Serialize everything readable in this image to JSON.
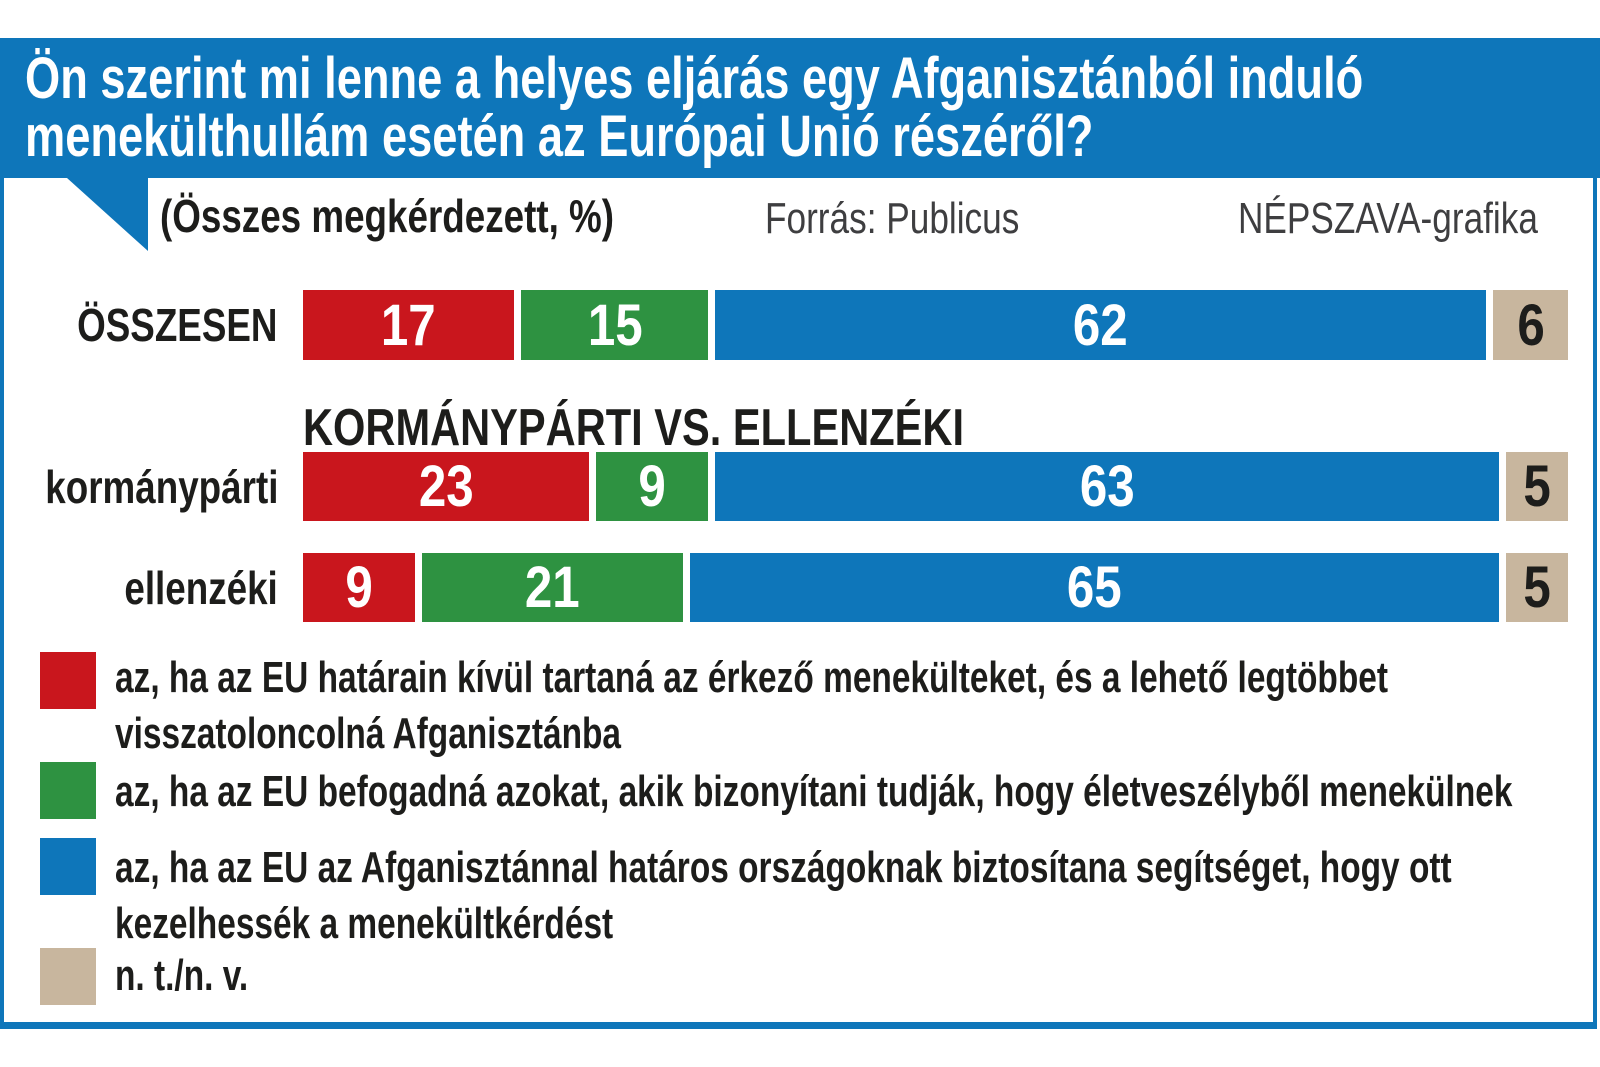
{
  "header": {
    "title_line1": "Ön szerint mi lenne a helyes eljárás egy Afganisztánból induló",
    "title_line2": "menekülthullám esetén az Európai Unió részéről?"
  },
  "meta": {
    "subtitle": "(Összes megkérdezett, %)",
    "source": "Forrás: Publicus",
    "credit": "NÉPSZAVA-grafika"
  },
  "section_header": "KORMÁNYPÁRTI VS. ELLENZÉKI",
  "colors": {
    "blue": "#0e76ba",
    "red": "#c9161d",
    "green": "#2e9241",
    "tan": "#c8b69e"
  },
  "chart_data": {
    "type": "bar",
    "stacked": true,
    "orientation": "horizontal",
    "unit": "%",
    "xlim": [
      0,
      100
    ],
    "categories": [
      "ÖSSZESEN",
      "kormánypárti",
      "ellenzéki"
    ],
    "series": [
      {
        "name": "az, ha az EU határain kívül tartaná az érkező menekülteket, és a lehető legtöbbet visszatoloncolná Afganisztánba",
        "color": "#c9161d",
        "value_text_color": "#ffffff",
        "values": [
          17,
          23,
          9
        ]
      },
      {
        "name": "az, ha az EU befogadná azokat, akik bizonyítani tudják, hogy életveszélyből menekülnek",
        "color": "#2e9241",
        "value_text_color": "#ffffff",
        "values": [
          15,
          9,
          21
        ]
      },
      {
        "name": "az, ha az EU az Afganisztánnal határos országoknak biztosítana segítséget, hogy ott kezelhessék a menekültkérdést",
        "color": "#0e76ba",
        "value_text_color": "#ffffff",
        "values": [
          62,
          63,
          65
        ]
      },
      {
        "name": "n. t./n. v.",
        "color": "#c8b69e",
        "value_text_color": "#1d1d1b",
        "values": [
          6,
          5,
          5
        ]
      }
    ]
  },
  "legend": {
    "items": [
      {
        "color": "#c9161d",
        "lines": [
          "az, ha az EU határain kívül tartaná az érkező menekülteket, és a lehető legtöbbet",
          "visszatoloncolná Afganisztánba"
        ]
      },
      {
        "color": "#2e9241",
        "lines": [
          "az, ha az EU befogadná azokat, akik bizonyítani tudják, hogy életveszélyből menekülnek"
        ]
      },
      {
        "color": "#0e76ba",
        "lines": [
          "az, ha az EU az Afganisztánnal határos országoknak biztosítana segítséget, hogy ott",
          "kezelhessék a menekültkérdést"
        ]
      },
      {
        "color": "#c8b69e",
        "lines": [
          "n. t./n. v."
        ]
      }
    ]
  }
}
